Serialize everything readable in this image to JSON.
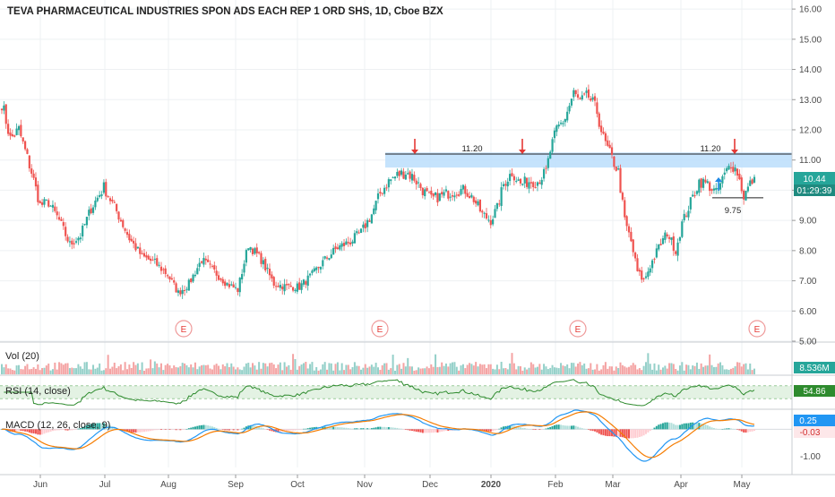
{
  "header": {
    "title": "TEVA PHARMACEUTICAL INDUSTRIES SPON ADS EACH REP 1 ORD SHS, 1D, Cboe BZX"
  },
  "colors": {
    "up": "#26a69a",
    "down": "#ef5350",
    "volume_up": "#94d0c9",
    "volume_down": "#f4a3a3",
    "rsi_line": "#2e8b2e",
    "rsi_band": "#e3f2e3",
    "macd_line": "#2196f3",
    "signal_line": "#f57c00",
    "resistance_zone": "#bbdefb",
    "arrow_red": "#e53935",
    "arrow_blue": "#1e88e5",
    "price_label_bg": "#26a69a",
    "grid": "#eef0f3",
    "axis_text": "#4a4a4a"
  },
  "chart_data": {
    "type": "candlestick",
    "x_axis": {
      "ticks": [
        "Jun",
        "Jul",
        "Aug",
        "Sep",
        "Oct",
        "Nov",
        "Dec",
        "2020",
        "Feb",
        "Mar",
        "Apr",
        "May"
      ]
    },
    "price_axis": {
      "ticks": [
        "5.00",
        "6.00",
        "7.00",
        "8.00",
        "9.00",
        "10.00",
        "11.00",
        "12.00",
        "13.00",
        "14.00",
        "15.00",
        "16.00"
      ],
      "range": [
        5,
        16.3
      ]
    },
    "last_price": "10.44",
    "countdown": "01:29:39",
    "resistance_zone": {
      "low": 10.75,
      "high": 11.25,
      "line": 11.2
    },
    "support_line": 9.75,
    "annotations": [
      {
        "text": "11.20",
        "value": 11.2,
        "month": "Dec"
      },
      {
        "text": "11.20",
        "value": 11.2,
        "month": "Apr"
      },
      {
        "text": "9.75",
        "value": 9.75,
        "month": "Apr"
      }
    ],
    "earnings_markers": [
      {
        "label": "E",
        "month": "Aug"
      },
      {
        "label": "E",
        "month": "Nov"
      },
      {
        "label": "E",
        "month": "Feb"
      },
      {
        "label": "E",
        "month": "May"
      }
    ],
    "close_waypoints": [
      {
        "day": 0,
        "close": 12.9
      },
      {
        "day": 4,
        "close": 11.7
      },
      {
        "day": 8,
        "close": 12.0
      },
      {
        "day": 14,
        "close": 10.6
      },
      {
        "day": 18,
        "close": 9.5
      },
      {
        "day": 22,
        "close": 9.6
      },
      {
        "day": 27,
        "close": 9.0
      },
      {
        "day": 32,
        "close": 8.2
      },
      {
        "day": 37,
        "close": 8.5
      },
      {
        "day": 42,
        "close": 9.4
      },
      {
        "day": 48,
        "close": 10.1
      },
      {
        "day": 54,
        "close": 9.3
      },
      {
        "day": 60,
        "close": 8.4
      },
      {
        "day": 66,
        "close": 7.8
      },
      {
        "day": 72,
        "close": 7.6
      },
      {
        "day": 78,
        "close": 7.2
      },
      {
        "day": 83,
        "close": 6.6
      },
      {
        "day": 88,
        "close": 6.9
      },
      {
        "day": 94,
        "close": 7.7
      },
      {
        "day": 100,
        "close": 7.3
      },
      {
        "day": 106,
        "close": 6.9
      },
      {
        "day": 111,
        "close": 6.7
      },
      {
        "day": 116,
        "close": 8.2
      },
      {
        "day": 122,
        "close": 7.7
      },
      {
        "day": 128,
        "close": 6.9
      },
      {
        "day": 134,
        "close": 6.8
      },
      {
        "day": 140,
        "close": 6.8
      },
      {
        "day": 146,
        "close": 7.2
      },
      {
        "day": 152,
        "close": 7.7
      },
      {
        "day": 158,
        "close": 8.1
      },
      {
        "day": 164,
        "close": 8.3
      },
      {
        "day": 169,
        "close": 8.6
      },
      {
        "day": 174,
        "close": 9.2
      },
      {
        "day": 178,
        "close": 9.9
      },
      {
        "day": 182,
        "close": 10.3
      },
      {
        "day": 186,
        "close": 10.5
      },
      {
        "day": 190,
        "close": 10.6
      },
      {
        "day": 194,
        "close": 10.4
      },
      {
        "day": 198,
        "close": 10.0
      },
      {
        "day": 202,
        "close": 9.7
      },
      {
        "day": 206,
        "close": 9.8
      },
      {
        "day": 210,
        "close": 9.9
      },
      {
        "day": 214,
        "close": 10.0
      },
      {
        "day": 218,
        "close": 10.0
      },
      {
        "day": 222,
        "close": 9.7
      },
      {
        "day": 226,
        "close": 9.2
      },
      {
        "day": 230,
        "close": 9.0
      },
      {
        "day": 233,
        "close": 9.4
      },
      {
        "day": 236,
        "close": 10.2
      },
      {
        "day": 240,
        "close": 10.6
      },
      {
        "day": 244,
        "close": 10.2
      },
      {
        "day": 248,
        "close": 10.3
      },
      {
        "day": 252,
        "close": 10.3
      },
      {
        "day": 256,
        "close": 10.6
      },
      {
        "day": 258,
        "close": 11.3
      },
      {
        "day": 261,
        "close": 12.0
      },
      {
        "day": 265,
        "close": 12.4
      },
      {
        "day": 269,
        "close": 13.2
      },
      {
        "day": 272,
        "close": 12.9
      },
      {
        "day": 276,
        "close": 13.1
      },
      {
        "day": 280,
        "close": 12.6
      },
      {
        "day": 283,
        "close": 11.7
      },
      {
        "day": 286,
        "close": 11.2
      },
      {
        "day": 288,
        "close": 10.9
      },
      {
        "day": 290,
        "close": 10.6
      },
      {
        "day": 293,
        "close": 9.0
      },
      {
        "day": 296,
        "close": 8.3
      },
      {
        "day": 299,
        "close": 7.3
      },
      {
        "day": 302,
        "close": 7.0
      },
      {
        "day": 305,
        "close": 7.5
      },
      {
        "day": 309,
        "close": 8.1
      },
      {
        "day": 313,
        "close": 8.6
      },
      {
        "day": 317,
        "close": 8.0
      },
      {
        "day": 320,
        "close": 8.9
      },
      {
        "day": 324,
        "close": 9.6
      },
      {
        "day": 328,
        "close": 10.3
      },
      {
        "day": 332,
        "close": 10.2
      },
      {
        "day": 336,
        "close": 9.9
      },
      {
        "day": 340,
        "close": 10.5
      },
      {
        "day": 343,
        "close": 10.9
      },
      {
        "day": 346,
        "close": 10.6
      },
      {
        "day": 349,
        "close": 9.8
      },
      {
        "day": 352,
        "close": 10.2
      },
      {
        "day": 354,
        "close": 10.44
      }
    ]
  },
  "volume_pane": {
    "title": "Vol (20)",
    "value_label": "8.536M"
  },
  "rsi_pane": {
    "title": "RSI (14, close)",
    "value_label": "54.86",
    "range": [
      0,
      100
    ],
    "band": [
      30,
      70
    ]
  },
  "macd_pane": {
    "title": "MACD (12, 26, close, 9)",
    "tick": "-1.00",
    "value_labels": [
      "0.25",
      "-0.03"
    ],
    "range": [
      -1.5,
      0.75
    ]
  }
}
